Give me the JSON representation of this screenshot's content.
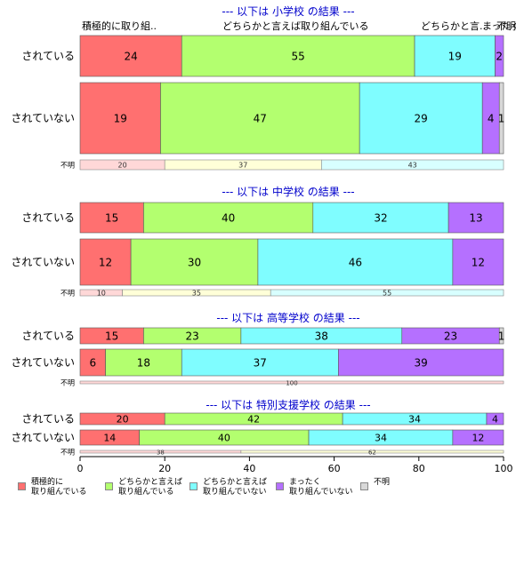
{
  "chart_data": {
    "type": "bar",
    "stacked": true,
    "orientation": "horizontal",
    "categories": [
      "積極的に\n取り組んでいる",
      "どちらかと言えば\n取り組んでいる",
      "どちらかと言えば\n取り組んでいない",
      "まったく\n取り組んでいない",
      "不明"
    ],
    "colors": [
      "#ff7070",
      "#b3ff6f",
      "#7ffdff",
      "#b570ff",
      "#d8d8d8"
    ],
    "unknown_colors": [
      "#ffd8d8",
      "#ffffd8",
      "#d8ffff"
    ],
    "x_ticks": [
      "0",
      "20",
      "40",
      "60",
      "80",
      "100"
    ],
    "xlim": [
      0,
      100
    ],
    "top_labels": [
      "積極的に取り組..",
      "どちらかと言えば取り組んでいる",
      "どちらかと言..",
      "まったく..",
      "不明"
    ],
    "panels": [
      {
        "title": "--- 以下は 小学校 の結果 ---",
        "rows": [
          {
            "label": "されている",
            "values": [
              24,
              55,
              19,
              2,
              0
            ]
          },
          {
            "label": "されていない",
            "values": [
              19,
              47,
              29,
              4,
              1
            ]
          }
        ],
        "unknown": {
          "label": "不明",
          "values": [
            20,
            37,
            43
          ]
        }
      },
      {
        "title": "--- 以下は 中学校 の結果 ---",
        "rows": [
          {
            "label": "されている",
            "values": [
              15,
              40,
              32,
              13,
              0
            ]
          },
          {
            "label": "されていない",
            "values": [
              12,
              30,
              46,
              12,
              0
            ]
          }
        ],
        "unknown": {
          "label": "不明",
          "values": [
            10,
            35,
            55
          ]
        }
      },
      {
        "title": "--- 以下は 高等学校 の結果 ---",
        "rows": [
          {
            "label": "されている",
            "values": [
              15,
              23,
              38,
              23,
              1
            ]
          },
          {
            "label": "されていない",
            "values": [
              6,
              18,
              37,
              39,
              0
            ]
          }
        ],
        "unknown": {
          "label": "不明",
          "values": [
            100
          ]
        }
      },
      {
        "title": "--- 以下は 特別支援学校 の結果 ---",
        "rows": [
          {
            "label": "されている",
            "values": [
              20,
              42,
              34,
              4,
              0
            ]
          },
          {
            "label": "されていない",
            "values": [
              14,
              40,
              34,
              12,
              0
            ]
          }
        ],
        "unknown": {
          "label": "不明",
          "values": [
            38,
            62
          ]
        }
      }
    ]
  }
}
